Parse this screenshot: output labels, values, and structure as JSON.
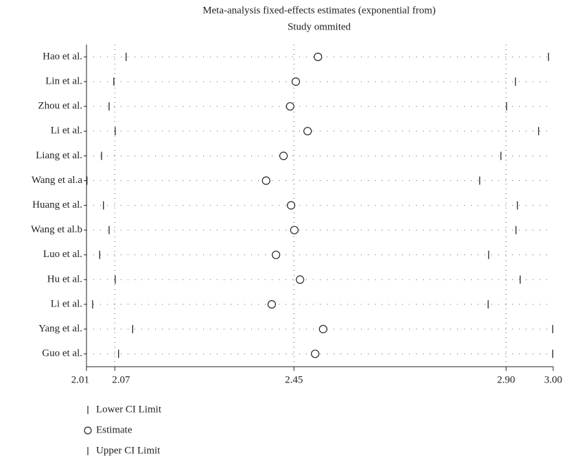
{
  "chart_data": {
    "type": "forest",
    "title": "Meta-analysis fixed-effects estimates (exponential from)",
    "subtitle": "Study ommited",
    "categories": [
      "Hao et al.",
      "Lin et al.",
      "Zhou et al.",
      "Li et al.",
      "Liang et al.",
      "Wang et al.a",
      "Huang et al.",
      "Wang et al.b",
      "Luo et al.",
      "Hu et al.",
      "Li et al.",
      "Yang et al.",
      "Guo et al."
    ],
    "series": [
      {
        "name": "Lower CI Limit",
        "color": "#222222",
        "values": [
          2.094,
          2.068,
          2.058,
          2.071,
          2.042,
          2.011,
          2.046,
          2.058,
          2.038,
          2.071,
          2.023,
          2.108,
          2.078
        ]
      },
      {
        "name": "Estimate",
        "color": "#222222",
        "values": [
          2.501,
          2.454,
          2.442,
          2.479,
          2.428,
          2.391,
          2.444,
          2.451,
          2.412,
          2.463,
          2.403,
          2.512,
          2.495
        ]
      },
      {
        "name": "Upper CI Limit",
        "color": "#222222",
        "values": [
          2.99,
          2.92,
          2.901,
          2.969,
          2.889,
          2.844,
          2.924,
          2.921,
          2.863,
          2.93,
          2.862,
          2.999,
          2.999
        ]
      }
    ],
    "xlim": [
      2.01,
      3.0
    ],
    "xticks": [
      2.01,
      2.07,
      2.45,
      {
        "value": 2.9,
        "label": "2.90"
      },
      {
        "value": 3.0,
        "label": "3.00"
      }
    ],
    "grid": true,
    "legend": "bottom-left"
  }
}
